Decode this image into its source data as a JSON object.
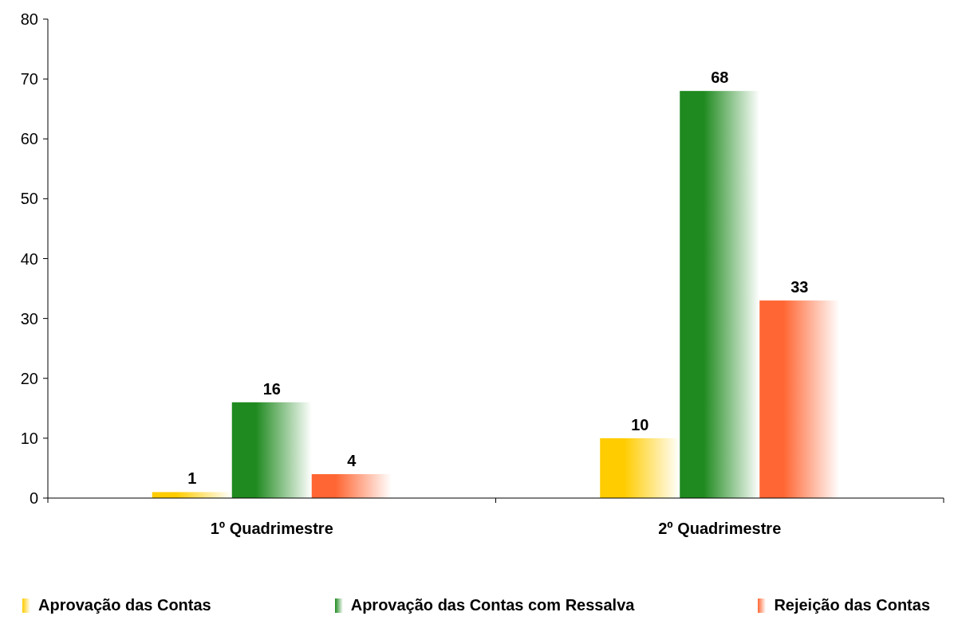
{
  "chart_data": {
    "type": "bar",
    "categories": [
      "1º Quadrimestre",
      "2º Quadrimestre"
    ],
    "series": [
      {
        "name": "Aprovação das Contas",
        "color": "#ffcc00",
        "values": [
          1,
          10
        ]
      },
      {
        "name": "Aprovação das Contas com Ressalva",
        "color": "#1f8a1f",
        "values": [
          16,
          68
        ]
      },
      {
        "name": "Rejeição das Contas",
        "color": "#ff6633",
        "values": [
          4,
          33
        ]
      }
    ],
    "ylim": [
      0,
      80
    ],
    "yticks": [
      0,
      10,
      20,
      30,
      40,
      50,
      60,
      70,
      80
    ],
    "data_labels": true,
    "legend": "bottom",
    "grid": false
  }
}
